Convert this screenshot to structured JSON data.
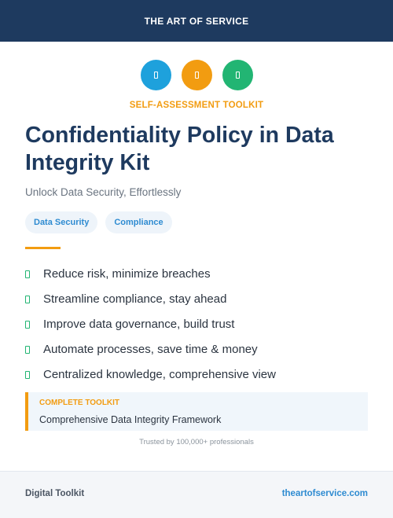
{
  "header": {
    "title": "THE ART OF SERVICE"
  },
  "icons": [
    {
      "name": "document-icon",
      "color": "#1ea1dc"
    },
    {
      "name": "document-icon",
      "color": "#f29c11"
    },
    {
      "name": "document-icon",
      "color": "#22b573"
    }
  ],
  "kicker": {
    "text": "SELF-ASSESSMENT TOOLKIT",
    "color": "#f29c11"
  },
  "title": "Confidentiality Policy in Data Integrity Kit",
  "subtitle": "Unlock Data Security, Effortlessly",
  "tags": [
    "Data Security",
    "Compliance"
  ],
  "divider_color": "#f29c11",
  "benefits": [
    "Reduce risk, minimize breaches",
    "Streamline compliance, stay ahead",
    "Improve data governance, build trust",
    "Automate processes, save time & money",
    "Centralized knowledge, comprehensive view"
  ],
  "callout": {
    "kicker": "COMPLETE TOOLKIT",
    "kicker_color": "#f29c11",
    "text": "Comprehensive Data Integrity Framework"
  },
  "trusted": "Trusted by 100,000+ professionals",
  "footer": {
    "left": "Digital Toolkit",
    "right": "theartofservice.com"
  }
}
